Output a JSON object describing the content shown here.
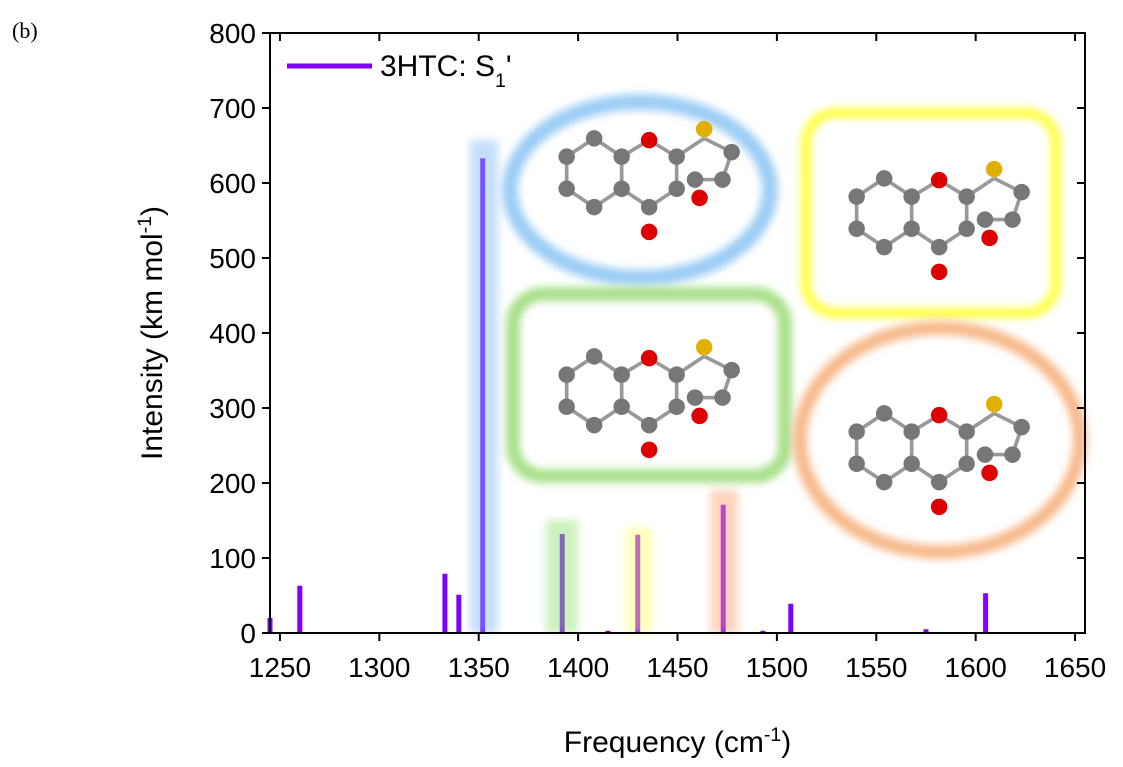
{
  "panel_label": "(b)",
  "chart_data": {
    "type": "stick",
    "xlabel": [
      "Frequency (cm",
      "-1",
      ")"
    ],
    "ylabel": [
      "Intensity (km mol",
      "-1",
      ")"
    ],
    "x": [
      1245,
      1260,
      1333,
      1340,
      1352,
      1392,
      1415,
      1430,
      1473,
      1493,
      1507,
      1575,
      1605
    ],
    "series": [
      {
        "name": [
          "3HTC: S",
          "1",
          "'"
        ],
        "color": "#8000ff",
        "values": [
          20,
          63,
          79,
          51,
          633,
          132,
          3,
          131,
          171,
          3,
          39,
          5,
          53
        ]
      }
    ],
    "xlim": [
      1245,
      1655
    ],
    "ylim": [
      0,
      800
    ],
    "xticks": [
      1250,
      1300,
      1350,
      1400,
      1450,
      1500,
      1550,
      1600,
      1650
    ],
    "yticks": [
      0,
      100,
      200,
      300,
      400,
      500,
      600,
      700,
      800
    ],
    "legend": "upper-left"
  }
}
